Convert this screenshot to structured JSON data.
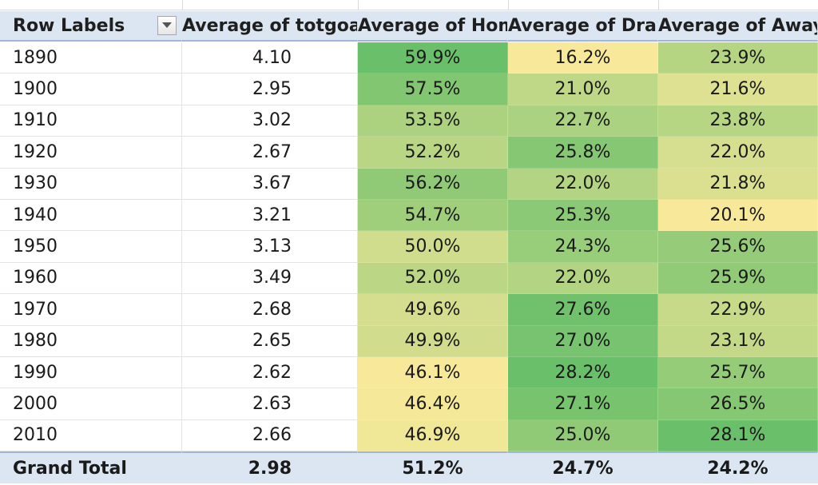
{
  "pivot": {
    "headers": [
      "Row Labels",
      "Average of totgoal",
      "Average of Home",
      "Average of Draw",
      "Average of Away"
    ],
    "rows": [
      {
        "label": "1890",
        "totgoal": "4.10",
        "home": "59.9%",
        "draw": "16.2%",
        "away": "23.9%"
      },
      {
        "label": "1900",
        "totgoal": "2.95",
        "home": "57.5%",
        "draw": "21.0%",
        "away": "21.6%"
      },
      {
        "label": "1910",
        "totgoal": "3.02",
        "home": "53.5%",
        "draw": "22.7%",
        "away": "23.8%"
      },
      {
        "label": "1920",
        "totgoal": "2.67",
        "home": "52.2%",
        "draw": "25.8%",
        "away": "22.0%"
      },
      {
        "label": "1930",
        "totgoal": "3.67",
        "home": "56.2%",
        "draw": "22.0%",
        "away": "21.8%"
      },
      {
        "label": "1940",
        "totgoal": "3.21",
        "home": "54.7%",
        "draw": "25.3%",
        "away": "20.1%"
      },
      {
        "label": "1950",
        "totgoal": "3.13",
        "home": "50.0%",
        "draw": "24.3%",
        "away": "25.6%"
      },
      {
        "label": "1960",
        "totgoal": "3.49",
        "home": "52.0%",
        "draw": "22.0%",
        "away": "25.9%"
      },
      {
        "label": "1970",
        "totgoal": "2.68",
        "home": "49.6%",
        "draw": "27.6%",
        "away": "22.9%"
      },
      {
        "label": "1980",
        "totgoal": "2.65",
        "home": "49.9%",
        "draw": "27.0%",
        "away": "23.1%"
      },
      {
        "label": "1990",
        "totgoal": "2.62",
        "home": "46.1%",
        "draw": "28.2%",
        "away": "25.7%"
      },
      {
        "label": "2000",
        "totgoal": "2.63",
        "home": "46.4%",
        "draw": "27.1%",
        "away": "26.5%"
      },
      {
        "label": "2010",
        "totgoal": "2.66",
        "home": "46.9%",
        "draw": "25.0%",
        "away": "28.1%"
      }
    ],
    "total": {
      "label": "Grand Total",
      "totgoal": "2.98",
      "home": "51.2%",
      "draw": "24.7%",
      "away": "24.2%"
    }
  },
  "icons": {
    "filter": "filter-dropdown-icon"
  },
  "colors": {
    "header_bg": "#dce6f2",
    "scale_low": "#f8e99a",
    "scale_high": "#6abf6a"
  }
}
